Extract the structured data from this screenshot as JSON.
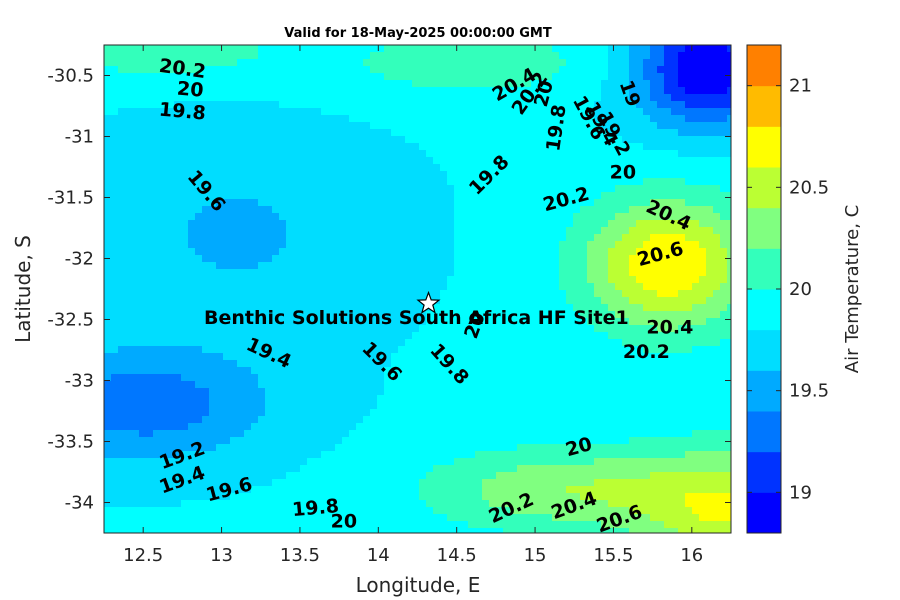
{
  "chart_data": {
    "type": "contour",
    "title": "Valid for 18-May-2025 00:00:00 GMT",
    "xlabel": "Longitude, E",
    "ylabel": "Latitude, S",
    "colorbar_label": "Air Temperature, C",
    "xlim": [
      12.25,
      16.25
    ],
    "ylim": [
      -34.25,
      -30.25
    ],
    "x_ticks": [
      12.5,
      13,
      13.5,
      14,
      14.5,
      15,
      15.5,
      16
    ],
    "x_tick_labels": [
      "12.5",
      "13",
      "13.5",
      "14",
      "14.5",
      "15",
      "15.5",
      "16"
    ],
    "y_ticks": [
      -30.5,
      -31,
      -31.5,
      -32,
      -32.5,
      -33,
      -33.5,
      -34
    ],
    "y_tick_labels": [
      "-30.5",
      "-31",
      "-31.5",
      "-32",
      "-32.5",
      "-33",
      "-33.5",
      "-34"
    ],
    "colorbar_range": [
      18.8,
      21.2
    ],
    "colorbar_ticks": [
      19,
      19.5,
      20,
      20.5,
      21
    ],
    "colorbar_tick_labels": [
      "19",
      "19.5",
      "20",
      "20.5",
      "21"
    ],
    "levels": [
      18.8,
      19.0,
      19.2,
      19.4,
      19.6,
      19.8,
      20.0,
      20.2,
      20.4,
      20.6,
      20.8,
      21.0,
      21.2
    ],
    "level_colors": [
      "#0000ff",
      "#0033ff",
      "#0077ff",
      "#00aaff",
      "#00ddff",
      "#00ffff",
      "#33ffbb",
      "#80ff80",
      "#bbff33",
      "#ffff00",
      "#ffbb00",
      "#ff8000",
      "#ff4000",
      "#ff0000"
    ],
    "site": {
      "name": "Benthic Solutions South Africa HF Site1",
      "lon": 14.32,
      "lat": -32.37
    },
    "contour_labels": [
      {
        "text": "20.2",
        "lon": 12.75,
        "lat": -30.45,
        "angle": 8
      },
      {
        "text": "20",
        "lon": 12.8,
        "lat": -30.62,
        "angle": 5
      },
      {
        "text": "19.8",
        "lon": 12.75,
        "lat": -30.8,
        "angle": 5
      },
      {
        "text": "19.6",
        "lon": 12.9,
        "lat": -31.45,
        "angle": 50
      },
      {
        "text": "20.4",
        "lon": 14.87,
        "lat": -30.58,
        "angle": -30
      },
      {
        "text": "20.2",
        "lon": 14.97,
        "lat": -30.65,
        "angle": -55
      },
      {
        "text": "20",
        "lon": 15.06,
        "lat": -30.65,
        "angle": -75
      },
      {
        "text": "19.8",
        "lon": 15.14,
        "lat": -30.93,
        "angle": -82
      },
      {
        "text": "19.6",
        "lon": 15.34,
        "lat": -30.85,
        "angle": 62
      },
      {
        "text": "19.4",
        "lon": 15.42,
        "lat": -30.9,
        "angle": 62
      },
      {
        "text": "19.2",
        "lon": 15.5,
        "lat": -30.98,
        "angle": 62
      },
      {
        "text": "19",
        "lon": 15.6,
        "lat": -30.65,
        "angle": 70
      },
      {
        "text": "19.8",
        "lon": 14.71,
        "lat": -31.32,
        "angle": -45
      },
      {
        "text": "20",
        "lon": 15.56,
        "lat": -31.3,
        "angle": 0
      },
      {
        "text": "20.2",
        "lon": 15.2,
        "lat": -31.52,
        "angle": -15
      },
      {
        "text": "20.4",
        "lon": 15.85,
        "lat": -31.65,
        "angle": 25
      },
      {
        "text": "20.6",
        "lon": 15.8,
        "lat": -31.97,
        "angle": -15
      },
      {
        "text": "20",
        "lon": 14.62,
        "lat": -32.55,
        "angle": -70
      },
      {
        "text": "20.4",
        "lon": 15.86,
        "lat": -32.57,
        "angle": 0
      },
      {
        "text": "20.2",
        "lon": 15.71,
        "lat": -32.77,
        "angle": 0
      },
      {
        "text": "19.4",
        "lon": 13.3,
        "lat": -32.78,
        "angle": 25
      },
      {
        "text": "19.6",
        "lon": 14.02,
        "lat": -32.85,
        "angle": 45
      },
      {
        "text": "19.8",
        "lon": 14.45,
        "lat": -32.87,
        "angle": 48
      },
      {
        "text": "20",
        "lon": 15.28,
        "lat": -33.55,
        "angle": -15
      },
      {
        "text": "19.2",
        "lon": 12.75,
        "lat": -33.62,
        "angle": -20
      },
      {
        "text": "19.4",
        "lon": 12.75,
        "lat": -33.82,
        "angle": -20
      },
      {
        "text": "19.6",
        "lon": 13.05,
        "lat": -33.9,
        "angle": -15
      },
      {
        "text": "19.8",
        "lon": 13.6,
        "lat": -34.05,
        "angle": -5
      },
      {
        "text": "20",
        "lon": 13.78,
        "lat": -34.16,
        "angle": 0
      },
      {
        "text": "20.2",
        "lon": 14.85,
        "lat": -34.05,
        "angle": -25
      },
      {
        "text": "20.4",
        "lon": 15.25,
        "lat": -34.03,
        "angle": -20
      },
      {
        "text": "20.6",
        "lon": 15.54,
        "lat": -34.14,
        "angle": -20
      }
    ]
  }
}
